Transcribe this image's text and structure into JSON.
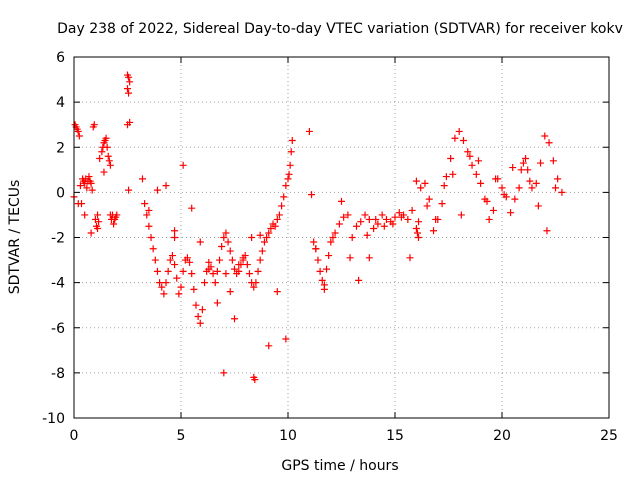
{
  "chart_data": {
    "type": "scatter",
    "title": "Day 238 of 2022, Sidereal Day-to-day VTEC variation (SDTVAR) for receiver kokv",
    "xlabel": "GPS time / hours",
    "ylabel": "SDTVAR / TECUs",
    "xlim": [
      0,
      25
    ],
    "ylim": [
      -10,
      6
    ],
    "xticks": [
      0,
      5,
      10,
      15,
      20,
      25
    ],
    "yticks": [
      -10,
      -8,
      -6,
      -4,
      -2,
      0,
      2,
      4,
      6
    ],
    "grid": true,
    "marker": "+",
    "color": "#ff0000",
    "series": [
      {
        "name": "SDTVAR",
        "x": [
          0.0,
          0.05,
          0.1,
          0.15,
          0.2,
          0.25,
          0.3,
          0.35,
          0.4,
          0.45,
          0.5,
          0.55,
          0.6,
          0.65,
          0.7,
          0.75,
          0.8,
          0.85,
          0.9,
          0.95,
          1.0,
          1.05,
          1.1,
          1.15,
          1.2,
          1.3,
          1.35,
          1.4,
          1.45,
          1.5,
          1.55,
          1.6,
          1.65,
          1.7,
          1.75,
          1.8,
          1.85,
          1.9,
          1.95,
          2.0,
          2.5,
          2.55,
          2.6,
          2.5,
          2.55,
          2.6,
          2.5,
          2.55,
          3.2,
          3.3,
          3.4,
          3.5,
          3.6,
          3.7,
          3.8,
          3.9,
          4.0,
          4.1,
          4.2,
          4.3,
          4.4,
          4.5,
          4.6,
          4.7,
          4.8,
          4.9,
          5.0,
          5.1,
          5.2,
          5.3,
          5.4,
          5.5,
          5.6,
          5.7,
          5.8,
          5.9,
          6.0,
          6.1,
          6.2,
          6.3,
          6.4,
          6.5,
          6.6,
          6.7,
          6.8,
          6.9,
          7.0,
          7.1,
          7.2,
          7.3,
          7.4,
          7.5,
          7.6,
          7.7,
          7.8,
          7.9,
          8.0,
          8.1,
          8.2,
          8.3,
          8.4,
          8.5,
          8.6,
          8.7,
          8.8,
          8.9,
          9.0,
          9.1,
          9.2,
          9.3,
          9.4,
          9.5,
          9.6,
          9.7,
          9.8,
          9.9,
          10.0,
          10.05,
          10.1,
          10.15,
          10.2,
          11.0,
          11.1,
          11.2,
          11.3,
          11.4,
          11.5,
          11.6,
          11.7,
          11.8,
          11.9,
          12.0,
          12.2,
          12.4,
          12.6,
          12.8,
          13.0,
          13.2,
          13.4,
          13.6,
          13.8,
          14.0,
          14.2,
          14.4,
          14.6,
          14.8,
          15.0,
          15.2,
          15.4,
          15.6,
          15.8,
          16.0,
          16.2,
          16.4,
          16.6,
          16.8,
          17.0,
          17.2,
          17.4,
          17.6,
          17.8,
          18.0,
          18.2,
          18.4,
          18.6,
          18.8,
          19.0,
          19.2,
          19.4,
          19.6,
          19.8,
          20.0,
          20.2,
          20.4,
          20.6,
          20.8,
          21.0,
          21.1,
          21.2,
          21.4,
          21.6,
          21.8,
          22.0,
          22.2,
          22.4,
          22.6,
          22.8,
          0.2,
          0.5,
          0.8,
          1.1,
          1.4,
          1.7,
          3.5,
          3.9,
          4.3,
          4.7,
          5.1,
          5.5,
          5.9,
          6.3,
          6.7,
          7.1,
          7.3,
          7.5,
          7.7,
          7.9,
          8.3,
          8.7,
          9.1,
          9.5,
          9.9,
          11.3,
          11.7,
          12.1,
          12.5,
          12.9,
          13.3,
          13.7,
          14.1,
          14.5,
          14.9,
          15.3,
          15.7,
          16.1,
          16.5,
          16.9,
          17.3,
          17.7,
          18.1,
          18.5,
          18.9,
          19.3,
          19.7,
          20.1,
          20.5,
          20.9,
          21.3,
          21.7,
          22.1,
          22.5,
          4.7,
          7.0,
          8.4,
          8.45,
          13.8,
          16.0,
          16.05,
          16.1
        ],
        "y": [
          -0.2,
          3.0,
          2.9,
          2.8,
          2.7,
          2.5,
          0.3,
          -0.5,
          0.6,
          0.5,
          0.4,
          0.6,
          0.2,
          0.5,
          0.7,
          0.5,
          0.4,
          0.1,
          2.9,
          3.0,
          -1.2,
          -1.5,
          -1.0,
          -1.3,
          1.5,
          1.8,
          2.0,
          2.2,
          2.3,
          2.4,
          2.0,
          1.6,
          1.4,
          1.2,
          -1.2,
          -1.0,
          -1.4,
          -1.2,
          -1.1,
          -1.0,
          5.2,
          5.1,
          4.9,
          4.6,
          4.4,
          3.1,
          3.0,
          0.1,
          0.6,
          -0.5,
          -1.0,
          -1.5,
          -2.0,
          -2.5,
          -3.0,
          -3.5,
          -4.0,
          -4.2,
          -4.5,
          -4.0,
          -3.5,
          -3.0,
          -2.8,
          -3.2,
          -3.8,
          -4.5,
          -4.2,
          -3.5,
          -3.0,
          -2.9,
          -3.1,
          -3.6,
          -4.3,
          -5.0,
          -5.5,
          -5.8,
          -5.2,
          -4.0,
          -3.5,
          -3.4,
          -3.3,
          -3.6,
          -4.0,
          -3.5,
          -3.0,
          -2.4,
          -2.0,
          -1.8,
          -2.2,
          -2.6,
          -3.0,
          -3.4,
          -3.6,
          -3.5,
          -3.2,
          -3.0,
          -2.8,
          -3.2,
          -3.6,
          -4.0,
          -4.2,
          -4.0,
          -3.5,
          -3.0,
          -2.6,
          -2.2,
          -2.0,
          -1.8,
          -1.6,
          -1.4,
          -1.5,
          -1.2,
          -1.0,
          -0.6,
          -0.2,
          0.3,
          0.6,
          0.8,
          1.2,
          1.8,
          2.3,
          2.7,
          -0.1,
          -2.2,
          -2.5,
          -3.0,
          -3.5,
          -3.9,
          -4.1,
          -3.4,
          -2.8,
          -2.2,
          -1.8,
          -1.4,
          -1.1,
          -1.0,
          -2.0,
          -1.5,
          -1.3,
          -1.0,
          -1.2,
          -1.6,
          -1.4,
          -1.0,
          -1.2,
          -1.3,
          -1.1,
          -0.9,
          -1.0,
          -1.2,
          -0.8,
          0.5,
          0.2,
          0.4,
          -0.3,
          -1.7,
          -1.2,
          -0.5,
          0.7,
          1.5,
          2.4,
          2.7,
          2.3,
          1.8,
          1.2,
          0.8,
          0.4,
          -0.3,
          -1.2,
          -0.8,
          0.6,
          0.2,
          -0.2,
          -0.9,
          -0.3,
          0.2,
          1.3,
          1.5,
          1.0,
          0.2,
          0.4,
          1.3,
          2.5,
          2.2,
          1.4,
          0.6,
          0.0,
          -0.5,
          -1.0,
          -1.8,
          -1.6,
          0.9,
          -1.0,
          -0.8,
          0.1,
          0.3,
          -1.7,
          1.2,
          -0.7,
          -2.2,
          -3.1,
          -4.9,
          -3.6,
          -4.4,
          -5.6,
          -3.2,
          -2.9,
          -2.0,
          -1.9,
          -6.8,
          -4.4,
          -6.5,
          -2.5,
          -4.3,
          -2.0,
          -0.4,
          -2.9,
          -3.9,
          -1.9,
          -1.2,
          -1.5,
          -1.4,
          -1.1,
          -2.9,
          -1.3,
          -0.6,
          -1.2,
          0.3,
          0.8,
          -1.0,
          1.6,
          1.4,
          -0.4,
          0.6,
          -0.1,
          1.1,
          1.0,
          0.5,
          -0.6,
          -1.7,
          0.2,
          -2.0,
          -8.0,
          -8.2,
          -8.3,
          -2.9,
          -1.6,
          -1.8,
          -2.0
        ]
      }
    ]
  }
}
